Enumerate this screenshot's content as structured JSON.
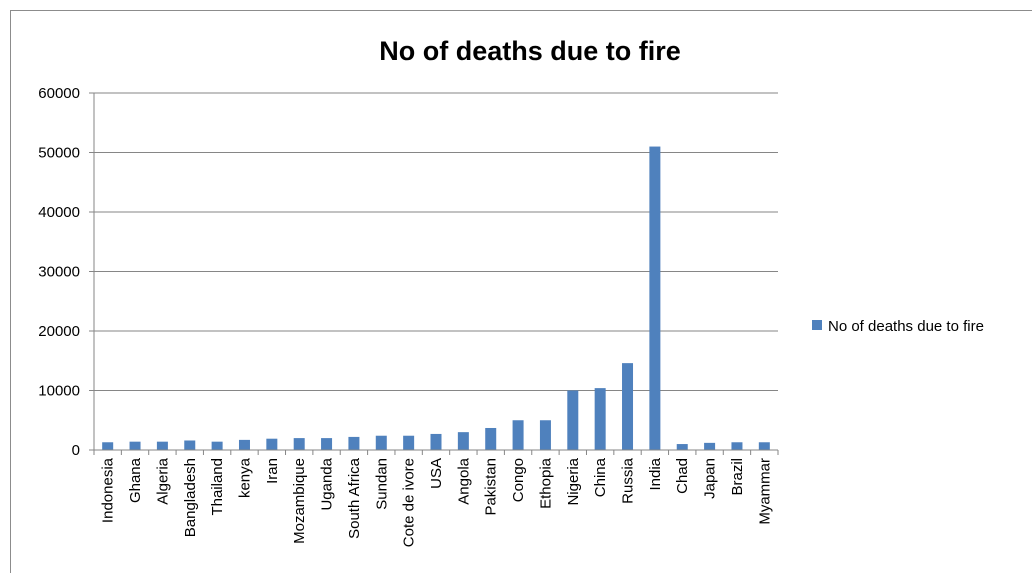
{
  "chart_data": {
    "type": "bar",
    "title": "No of deaths due to fire",
    "xlabel": "",
    "ylabel": "",
    "ylim": [
      0,
      60000
    ],
    "yticks": [
      0,
      10000,
      20000,
      30000,
      40000,
      50000,
      60000
    ],
    "grid": true,
    "legend_position": "right",
    "categories": [
      "Indonesia",
      "Ghana",
      "Algeria",
      "Bangladesh",
      "Thailand",
      "kenya",
      "Iran",
      "Mozambique",
      "Uganda",
      "South Africa",
      "Sundan",
      "Cote de ivore",
      "USA",
      "Angola",
      "Pakistan",
      "Congo",
      "Ethopia",
      "Nigeria",
      "China",
      "Russia",
      "India",
      "Chad",
      "Japan",
      "Brazil",
      "Myammar"
    ],
    "series": [
      {
        "name": "No of deaths due to fire",
        "color": "#4f81bd",
        "values": [
          1300,
          1400,
          1400,
          1600,
          1400,
          1700,
          1900,
          2000,
          2000,
          2200,
          2400,
          2400,
          2700,
          3000,
          3700,
          5000,
          5000,
          10000,
          10400,
          14600,
          51000,
          1000,
          1200,
          1300,
          1300
        ]
      }
    ]
  }
}
